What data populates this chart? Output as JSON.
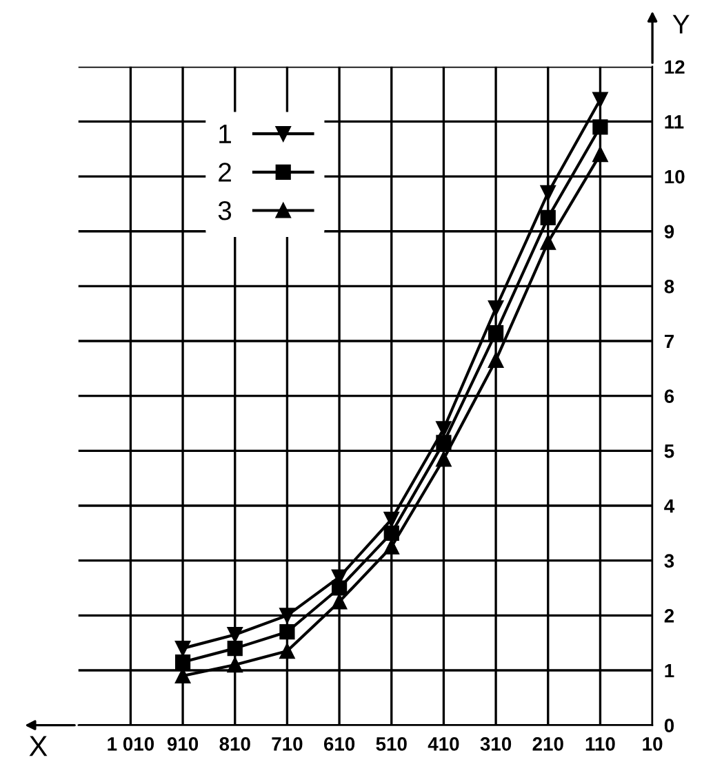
{
  "chart_data": {
    "type": "line",
    "xlabel": "X",
    "ylabel": "Y",
    "x": [
      910,
      810,
      710,
      610,
      510,
      410,
      310,
      210,
      110
    ],
    "series": [
      {
        "name": "1",
        "color": "#000000",
        "marker": "triangle_down",
        "values": [
          1.4,
          1.65,
          2.0,
          2.7,
          3.75,
          5.4,
          7.6,
          9.7,
          11.4
        ]
      },
      {
        "name": "2",
        "color": "#000000",
        "marker": "square",
        "values": [
          1.15,
          1.4,
          1.7,
          2.5,
          3.5,
          5.15,
          7.15,
          9.25,
          10.9
        ]
      },
      {
        "name": "3",
        "color": "#000000",
        "marker": "triangle",
        "values": [
          0.9,
          1.1,
          1.35,
          2.25,
          3.25,
          4.85,
          6.65,
          8.8,
          10.4
        ]
      }
    ],
    "xlim": [
      1110,
      10
    ],
    "xticks": [
      {
        "value": 1010,
        "label": "1 010"
      },
      910,
      810,
      710,
      610,
      510,
      410,
      310,
      210,
      110,
      10
    ],
    "ylim": [
      0,
      12
    ],
    "yticks": [
      0,
      1,
      2,
      3,
      4,
      5,
      6,
      7,
      8,
      9,
      10,
      11,
      12
    ],
    "grid": true,
    "legend": "top left",
    "line_style": "solid"
  }
}
